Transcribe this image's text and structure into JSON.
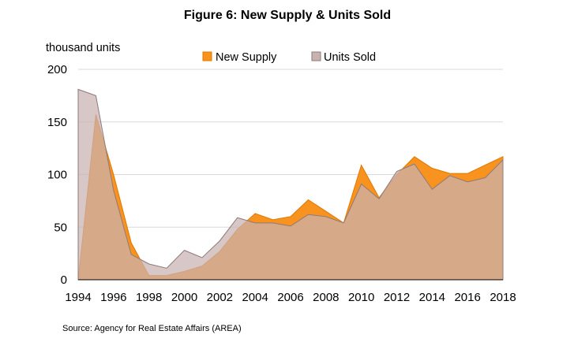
{
  "chart_data": {
    "type": "area",
    "title": "Figure 6: New Supply & Units Sold",
    "ylabel": "thousand units",
    "xlabel": "",
    "source": "Source: Agency for Real Estate Affairs (AREA)",
    "x": [
      1994,
      1995,
      1996,
      1997,
      1998,
      1999,
      2000,
      2001,
      2002,
      2003,
      2004,
      2005,
      2006,
      2007,
      2008,
      2009,
      2010,
      2011,
      2012,
      2013,
      2014,
      2015,
      2016,
      2017,
      2018
    ],
    "x_ticks": [
      "1994",
      "1996",
      "1998",
      "2000",
      "2002",
      "2004",
      "2006",
      "2008",
      "2010",
      "2012",
      "2014",
      "2016",
      "2018"
    ],
    "y_ticks": [
      "0",
      "50",
      "100",
      "150",
      "200"
    ],
    "ylim": [
      0,
      200
    ],
    "grid": true,
    "legend_position": "top",
    "series": [
      {
        "name": "New Supply",
        "color": "#F7931E",
        "values": [
          0,
          157,
          100,
          35,
          4,
          4,
          8,
          13,
          27,
          48,
          63,
          57,
          60,
          76,
          65,
          54,
          109,
          78,
          100,
          117,
          106,
          101,
          101,
          109,
          117
        ]
      },
      {
        "name": "Units Sold",
        "color": "#C9B2B2",
        "values": [
          181,
          175,
          85,
          24,
          15,
          11,
          28,
          21,
          37,
          59,
          54,
          54,
          51,
          62,
          60,
          54,
          91,
          77,
          103,
          110,
          86,
          99,
          93,
          97,
          114
        ]
      }
    ]
  }
}
